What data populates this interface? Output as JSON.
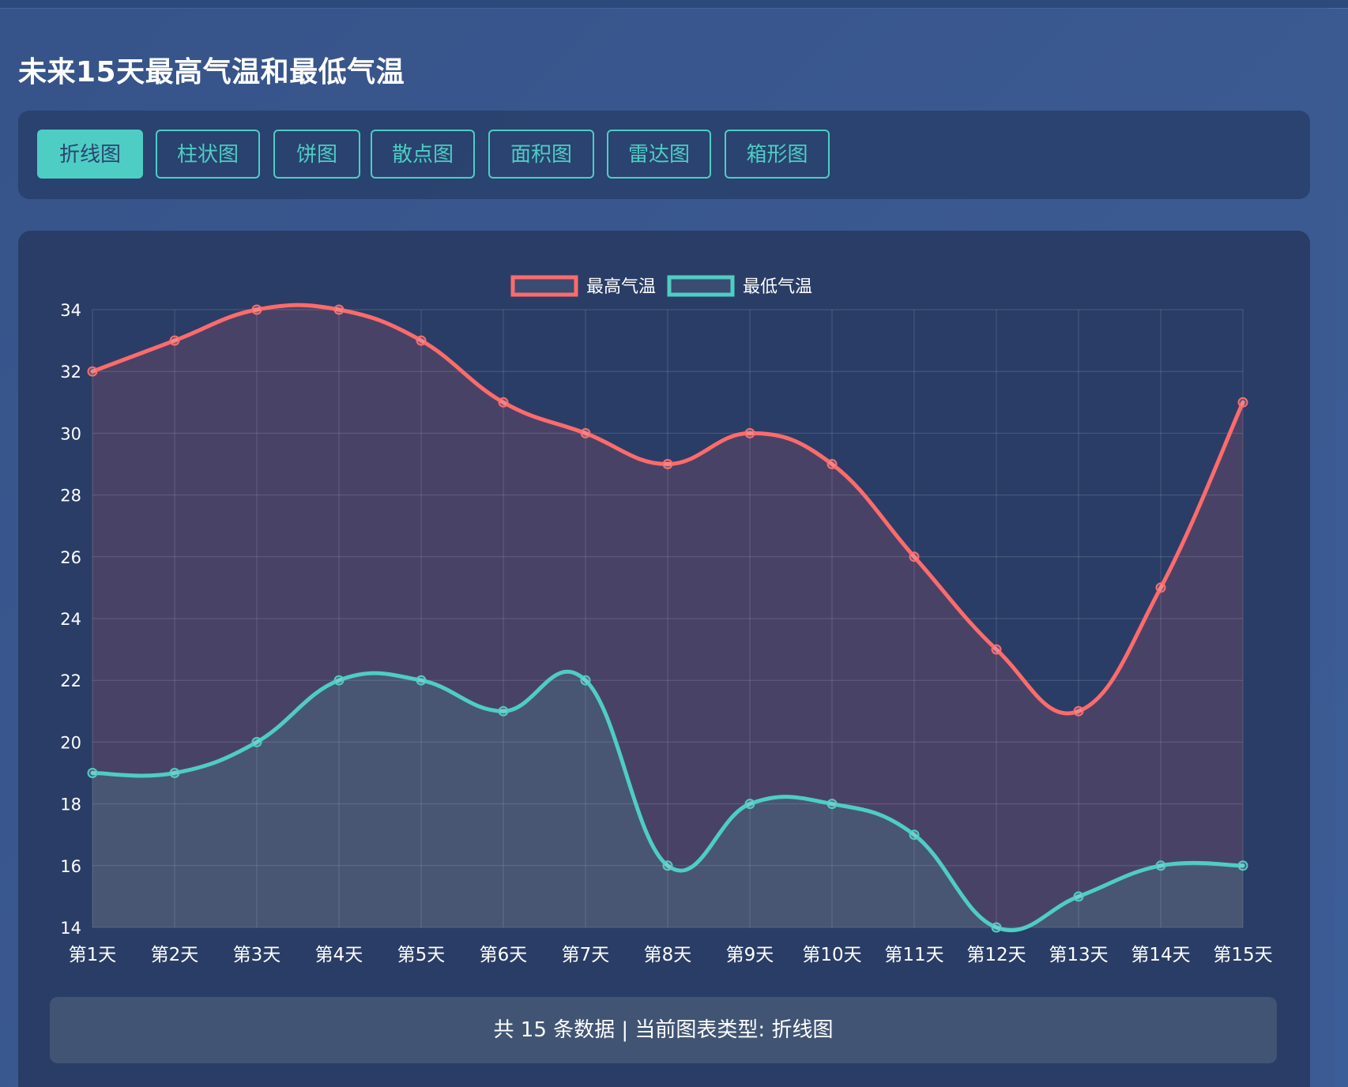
{
  "page": {
    "title": "未来15天最高气温和最低气温"
  },
  "tabs": [
    {
      "label": "折线图",
      "active": true
    },
    {
      "label": "柱状图",
      "active": false
    },
    {
      "label": "饼图",
      "active": false
    },
    {
      "label": "散点图",
      "active": false
    },
    {
      "label": "面积图",
      "active": false
    },
    {
      "label": "雷达图",
      "active": false
    },
    {
      "label": "箱形图",
      "active": false
    }
  ],
  "colors": {
    "accent": "#4ecdc4",
    "high_series": "#ff6b6b",
    "low_series": "#4ecdc4"
  },
  "chart_data": {
    "type": "line",
    "categories": [
      "第1天",
      "第2天",
      "第3天",
      "第4天",
      "第5天",
      "第6天",
      "第7天",
      "第8天",
      "第9天",
      "第10天",
      "第11天",
      "第12天",
      "第13天",
      "第14天",
      "第15天"
    ],
    "series": [
      {
        "name": "最高气温",
        "values": [
          32,
          33,
          34,
          34,
          33,
          31,
          30,
          29,
          30,
          29,
          26,
          23,
          21,
          25,
          31
        ],
        "color": "#ff6b6b"
      },
      {
        "name": "最低气温",
        "values": [
          19,
          19,
          20,
          22,
          22,
          21,
          22,
          16,
          18,
          18,
          17,
          14,
          15,
          16,
          16
        ],
        "color": "#4ecdc4"
      }
    ],
    "ylim": [
      14,
      34
    ],
    "yticks": [
      14,
      16,
      18,
      20,
      22,
      24,
      26,
      28,
      30,
      32,
      34
    ],
    "grid": true,
    "legend": "top-center",
    "smooth": true,
    "filled": true
  },
  "footer": {
    "text": "共 15 条数据 | 当前图表类型: 折线图"
  }
}
